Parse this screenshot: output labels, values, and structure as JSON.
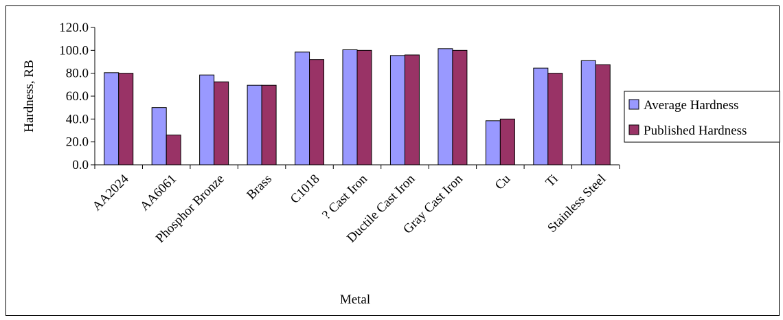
{
  "chart_data": {
    "type": "bar",
    "categories": [
      "AA2024",
      "AA6061",
      "Phosphor Bronze",
      "Brass",
      "C1018",
      "? Cast Iron",
      "Ductile Cast Iron",
      "Gray Cast Iron",
      "Cu",
      "Ti",
      "Stainless Steel"
    ],
    "series": [
      {
        "name": "Average Hardness",
        "color": "#9999ff",
        "values": [
          80.5,
          50.0,
          78.5,
          69.5,
          98.5,
          100.5,
          95.5,
          101.5,
          38.5,
          84.5,
          91.0
        ]
      },
      {
        "name": "Published Hardness",
        "color": "#993366",
        "values": [
          80.0,
          26.0,
          72.5,
          69.5,
          92.0,
          100.0,
          96.0,
          100.0,
          40.0,
          80.0,
          87.5
        ]
      }
    ],
    "xlabel": "Metal",
    "ylabel": "Hardness, RB",
    "ylim": [
      0,
      120
    ],
    "yticks": [
      "0.0",
      "20.0",
      "40.0",
      "60.0",
      "80.0",
      "100.0",
      "120.0"
    ],
    "grid": false,
    "legend": "right"
  }
}
